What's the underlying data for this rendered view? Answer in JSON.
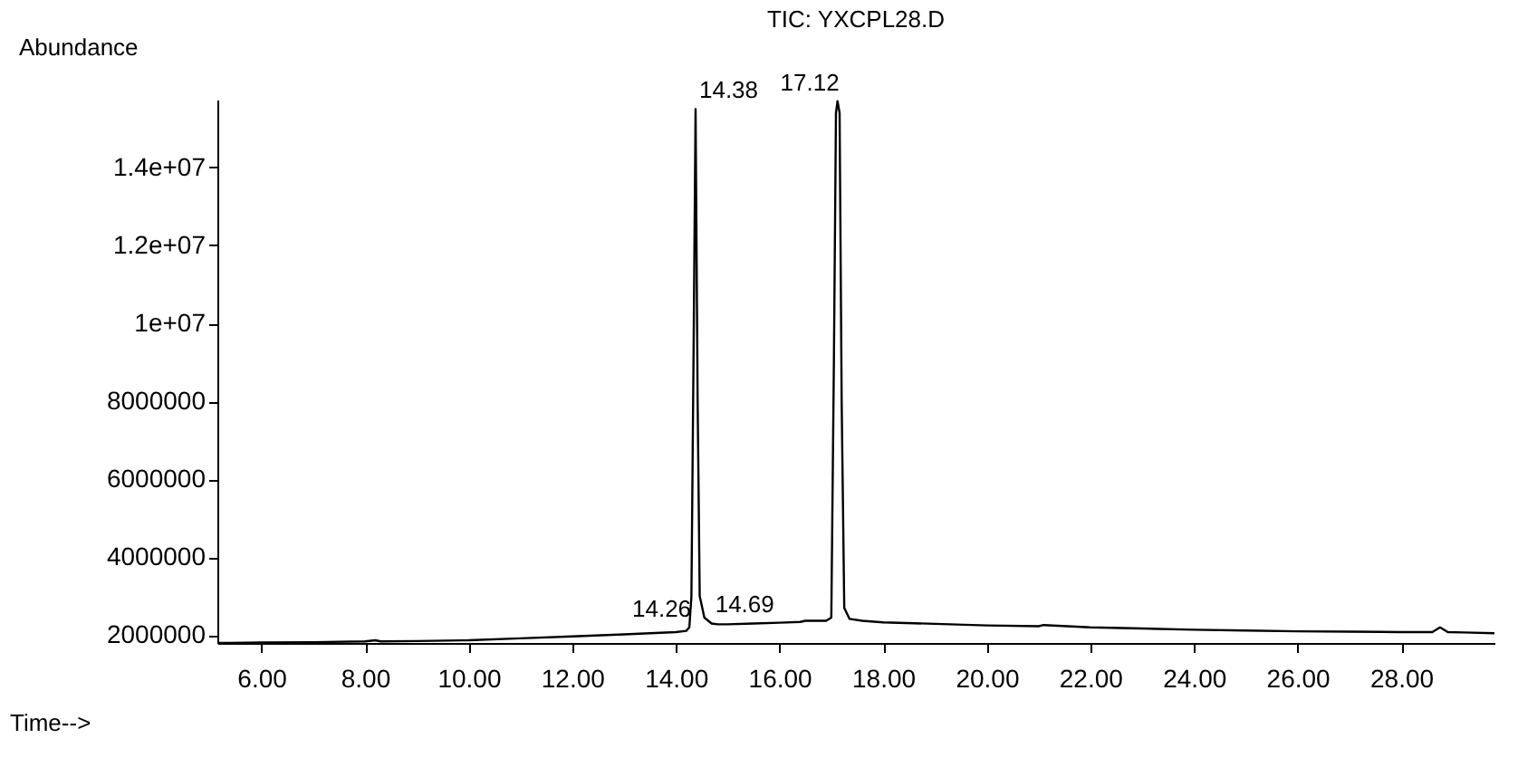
{
  "chart_data": {
    "type": "line",
    "title": "TIC: YXCPL28.D",
    "xlabel": "Time-->",
    "ylabel": "Abundance",
    "x": [
      5.15,
      6.0,
      7.0,
      8.0,
      8.2,
      8.3,
      9.0,
      10.0,
      11.0,
      12.0,
      13.0,
      14.0,
      14.2,
      14.26,
      14.3,
      14.34,
      14.38,
      14.42,
      14.46,
      14.55,
      14.69,
      14.8,
      15.0,
      15.5,
      16.0,
      16.4,
      16.5,
      16.9,
      17.0,
      17.05,
      17.09,
      17.12,
      17.16,
      17.2,
      17.25,
      17.35,
      17.6,
      18.0,
      19.0,
      20.0,
      21.0,
      21.1,
      22.0,
      23.0,
      24.0,
      25.0,
      26.0,
      27.0,
      28.0,
      28.6,
      28.75,
      28.9,
      29.2,
      29.8
    ],
    "series": [
      {
        "color": "#000000",
        "values": [
          1800000,
          1810000,
          1820000,
          1840000,
          1870000,
          1840000,
          1850000,
          1870000,
          1920000,
          1970000,
          2020000,
          2080000,
          2110000,
          2200000,
          3000000,
          9000000,
          15500000,
          8000000,
          3000000,
          2450000,
          2300000,
          2280000,
          2280000,
          2300000,
          2320000,
          2340000,
          2370000,
          2370000,
          2450000,
          9000000,
          15400000,
          15700000,
          15400000,
          8000000,
          2700000,
          2420000,
          2370000,
          2330000,
          2290000,
          2250000,
          2230000,
          2260000,
          2200000,
          2170000,
          2140000,
          2120000,
          2100000,
          2090000,
          2080000,
          2080000,
          2200000,
          2080000,
          2070000,
          2050000
        ]
      }
    ],
    "xlim": [
      5.15,
      29.8
    ],
    "ylim": [
      1800000,
      15740000
    ],
    "xticks": [
      {
        "value": 6,
        "label": "6.00"
      },
      {
        "value": 8,
        "label": "8.00"
      },
      {
        "value": 10,
        "label": "10.00"
      },
      {
        "value": 12,
        "label": "12.00"
      },
      {
        "value": 14,
        "label": "14.00"
      },
      {
        "value": 16,
        "label": "16.00"
      },
      {
        "value": 18,
        "label": "18.00"
      },
      {
        "value": 20,
        "label": "20.00"
      },
      {
        "value": 22,
        "label": "22.00"
      },
      {
        "value": 24,
        "label": "24.00"
      },
      {
        "value": 26,
        "label": "26.00"
      },
      {
        "value": 28,
        "label": "28.00"
      }
    ],
    "yticks": [
      2000000,
      4000000,
      6000000,
      8000000,
      {
        "value": 10000000,
        "label": "1e+07"
      },
      {
        "value": 12000000,
        "label": "1.2e+07"
      },
      {
        "value": 14000000,
        "label": "1.4e+07"
      }
    ],
    "annotations": [
      {
        "text": "14.38",
        "x": 14.38,
        "y": 15500000
      },
      {
        "text": "17.12",
        "x": 17.12,
        "y": 15700000
      },
      {
        "text": "14.26",
        "x": 14.26,
        "y": 2200000
      },
      {
        "text": "14.69",
        "x": 14.69,
        "y": 2300000
      }
    ],
    "grid": false,
    "marker": "none",
    "line_style": "solid"
  }
}
